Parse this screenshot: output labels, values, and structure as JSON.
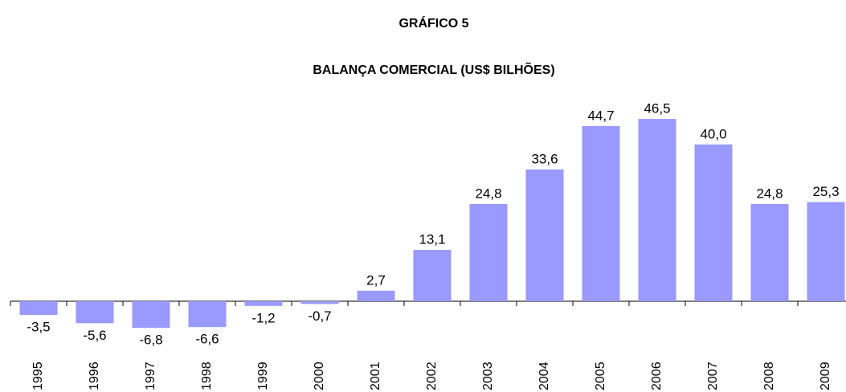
{
  "chart_data": {
    "type": "bar",
    "title": "GRÁFICO 5",
    "subtitle": "BALANÇA COMERCIAL (US$ BILHÕES)",
    "categories": [
      "1995",
      "1996",
      "1997",
      "1998",
      "1999",
      "2000",
      "2001",
      "2002",
      "2003",
      "2004",
      "2005",
      "2006",
      "2007",
      "2008",
      "2009"
    ],
    "values": [
      -3.5,
      -5.6,
      -6.8,
      -6.6,
      -1.2,
      -0.7,
      2.7,
      13.1,
      24.8,
      33.6,
      44.7,
      46.5,
      40.0,
      24.8,
      25.3
    ],
    "value_labels": [
      "-3,5",
      "-5,6",
      "-6,8",
      "-6,6",
      "-1,2",
      "-0,7",
      "2,7",
      "13,1",
      "24,8",
      "33,6",
      "44,7",
      "46,5",
      "40,0",
      "24,8",
      "25,3"
    ],
    "color": "#9999ff",
    "ylim": [
      -7.5,
      50
    ]
  }
}
